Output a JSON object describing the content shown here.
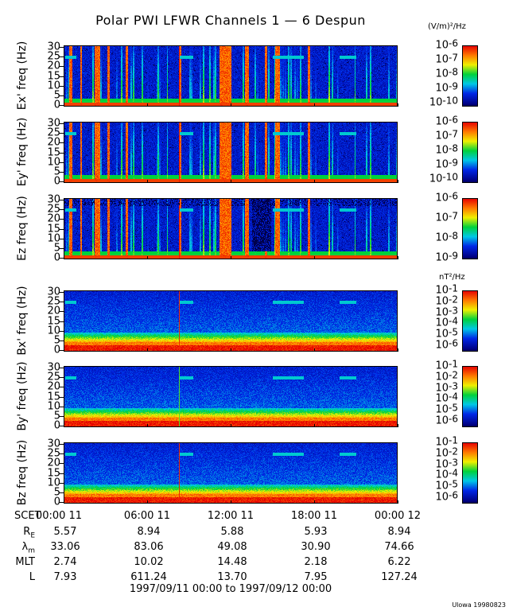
{
  "title": "Polar PWI LFWR Channels 1 — 6 Despun",
  "units": {
    "electric": "(V/m)²/Hz",
    "magnetic": "nT²/Hz"
  },
  "chart_data": {
    "type": "heatmap",
    "title": "Polar PWI LFWR Channels 1 — 6 Despun",
    "xlabel": "SCET",
    "xlim_hours": [
      0,
      24
    ],
    "xtick_labels": [
      "00:00 11",
      "06:00 11",
      "12:00 11",
      "18:00 11",
      "00:00 12"
    ],
    "xtick_hours": [
      0,
      6,
      12,
      18,
      24
    ],
    "panels": [
      {
        "kind": "E",
        "ylabel": "Ex' freq (Hz)",
        "ylim": [
          0,
          30
        ],
        "yticks": [
          "30",
          "25",
          "20",
          "15",
          "10",
          "5",
          "0"
        ],
        "colorbar": {
          "range_log10": [
            -10.3,
            -6
          ],
          "exponents": [
            "-6",
            "-7",
            "-8",
            "-9",
            "-10"
          ],
          "values": [
            -6,
            -7,
            -8,
            -9,
            -10
          ]
        }
      },
      {
        "kind": "E",
        "ylabel": "Ey' freq (Hz)",
        "ylim": [
          0,
          30
        ],
        "yticks": [
          "30",
          "25",
          "20",
          "15",
          "10",
          "5",
          "0"
        ],
        "colorbar": {
          "range_log10": [
            -10.3,
            -6
          ],
          "exponents": [
            "-6",
            "-7",
            "-8",
            "-9",
            "-10"
          ],
          "values": [
            -6,
            -7,
            -8,
            -9,
            -10
          ]
        }
      },
      {
        "kind": "Ez",
        "ylabel": "Ez freq (Hz)",
        "ylim": [
          0,
          30
        ],
        "yticks": [
          "30",
          "25",
          "20",
          "15",
          "10",
          "5",
          "0"
        ],
        "colorbar": {
          "range_log10": [
            -9.1,
            -6
          ],
          "exponents": [
            "-6",
            "-7",
            "-8",
            "-9"
          ],
          "values": [
            -6,
            -7,
            -8,
            -9
          ]
        }
      },
      {
        "kind": "B",
        "ylabel": "Bx' freq (Hz)",
        "ylim": [
          0,
          30
        ],
        "yticks": [
          "30",
          "25",
          "20",
          "15",
          "10",
          "5",
          "0"
        ],
        "colorbar": {
          "range_log10": [
            -6.6,
            -1
          ],
          "exponents": [
            "-1",
            "-2",
            "-3",
            "-4",
            "-5",
            "-6"
          ],
          "values": [
            -1,
            -2,
            -3,
            -4,
            -5,
            -6
          ]
        }
      },
      {
        "kind": "B",
        "ylabel": "By' freq (Hz)",
        "ylim": [
          0,
          30
        ],
        "yticks": [
          "30",
          "25",
          "20",
          "15",
          "10",
          "5",
          "0"
        ],
        "colorbar": {
          "range_log10": [
            -6.6,
            -1
          ],
          "exponents": [
            "-1",
            "-2",
            "-3",
            "-4",
            "-5",
            "-6"
          ],
          "values": [
            -1,
            -2,
            -3,
            -4,
            -5,
            -6
          ]
        }
      },
      {
        "kind": "B",
        "ylabel": "Bz freq (Hz)",
        "ylim": [
          0,
          30
        ],
        "yticks": [
          "30",
          "25",
          "20",
          "15",
          "10",
          "5",
          "0"
        ],
        "colorbar": {
          "range_log10": [
            -6.6,
            -1
          ],
          "exponents": [
            "-1",
            "-2",
            "-3",
            "-4",
            "-5",
            "-6"
          ],
          "values": [
            -1,
            -2,
            -3,
            -4,
            -5,
            -6
          ]
        }
      }
    ],
    "features": {
      "red_line_hour": 8.3,
      "broadband_bursts_hours": [
        [
          0.4,
          0.6
        ],
        [
          1.2,
          1.3
        ],
        [
          2.2,
          2.6
        ],
        [
          3.1,
          3.3
        ],
        [
          4.4,
          4.6
        ],
        [
          8.3,
          8.4
        ],
        [
          11.2,
          12.0
        ],
        [
          13.0,
          13.3
        ],
        [
          14.4,
          14.6
        ],
        [
          15.2,
          15.5
        ],
        [
          17.5,
          17.7
        ]
      ],
      "tone_25hz_hours": [
        [
          0.1,
          0.9
        ],
        [
          8.3,
          9.3
        ],
        [
          15.0,
          17.2
        ],
        [
          19.8,
          21.0
        ]
      ]
    }
  },
  "ephemeris": {
    "scet_label": "SCET",
    "rows": [
      {
        "label": "R",
        "sub": "E",
        "values": [
          "5.57",
          "8.94",
          "5.88",
          "5.93",
          "8.94"
        ]
      },
      {
        "label": "λ",
        "sub": "m",
        "values": [
          "33.06",
          "83.06",
          "49.08",
          "30.90",
          "74.66"
        ]
      },
      {
        "label": "MLT",
        "sub": "",
        "values": [
          "2.74",
          "10.02",
          "14.48",
          "2.18",
          "6.22"
        ]
      },
      {
        "label": "L",
        "sub": "",
        "values": [
          "7.93",
          "611.24",
          "13.70",
          "7.95",
          "127.24"
        ]
      }
    ]
  },
  "date_range": "1997/09/11 00:00 to 1997/09/12 00:00",
  "credit": "Ulowa 19980823"
}
